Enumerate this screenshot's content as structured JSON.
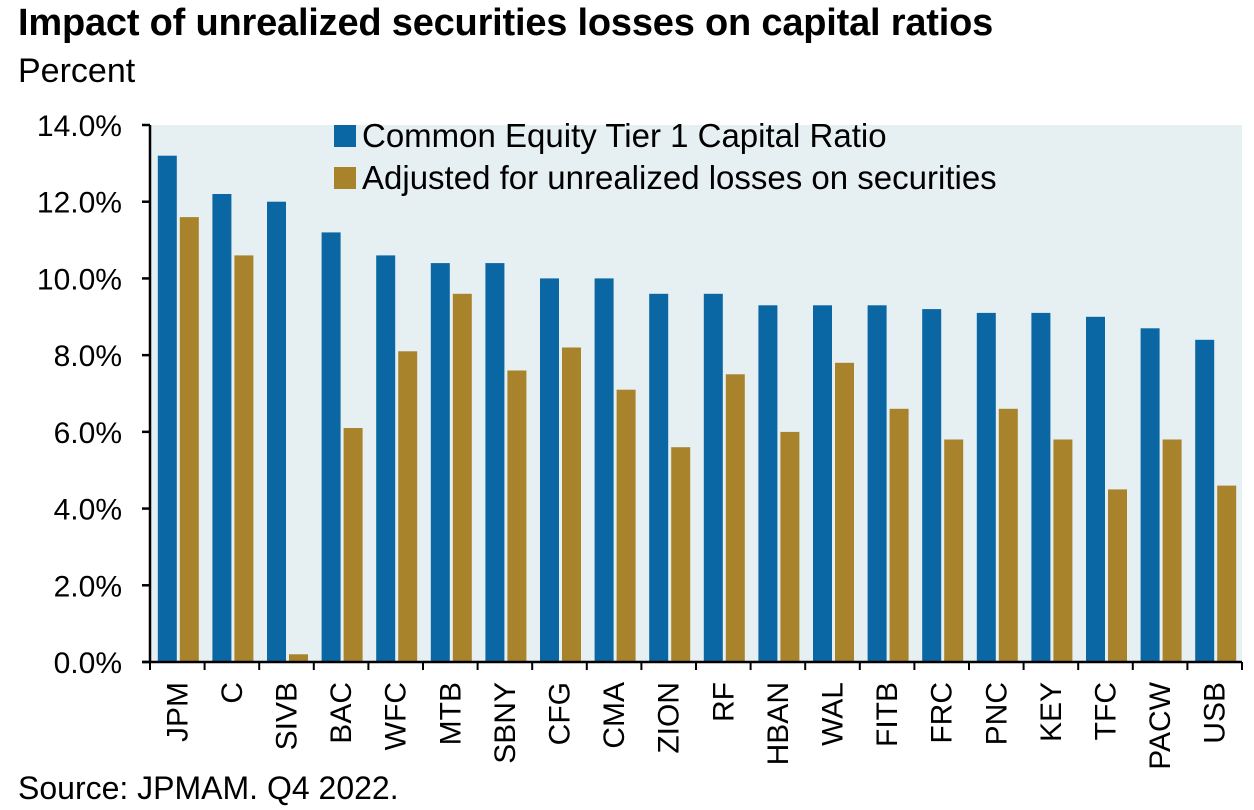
{
  "title": "Impact of unrealized securities losses on capital ratios",
  "subtitle": "Percent",
  "source": "Source: JPMAM. Q4 2022.",
  "colors": {
    "series1": "#0a67a3",
    "series2": "#a8832c",
    "plot_bg": "#e6eff2",
    "axis": "#000000"
  },
  "chart_data": {
    "type": "bar",
    "title": "Impact of unrealized securities losses on capital ratios",
    "ylabel": "Percent",
    "xlabel": "",
    "ylim": [
      0,
      14
    ],
    "yticks": [
      "0.0%",
      "2.0%",
      "4.0%",
      "6.0%",
      "8.0%",
      "10.0%",
      "12.0%",
      "14.0%"
    ],
    "ytick_values": [
      0,
      2,
      4,
      6,
      8,
      10,
      12,
      14
    ],
    "legend_position": "top-center",
    "categories": [
      "JPM",
      "C",
      "SIVB",
      "BAC",
      "WFC",
      "MTB",
      "SBNY",
      "CFG",
      "CMA",
      "ZION",
      "RF",
      "HBAN",
      "WAL",
      "FITB",
      "FRC",
      "PNC",
      "KEY",
      "TFC",
      "PACW",
      "USB"
    ],
    "series": [
      {
        "name": "Common Equity Tier 1 Capital Ratio",
        "color": "#0a67a3",
        "values": [
          13.2,
          12.2,
          12.0,
          11.2,
          10.6,
          10.4,
          10.4,
          10.0,
          10.0,
          9.6,
          9.6,
          9.3,
          9.3,
          9.3,
          9.2,
          9.1,
          9.1,
          9.0,
          8.7,
          8.4
        ]
      },
      {
        "name": "Adjusted for unrealized losses on securities",
        "color": "#a8832c",
        "values": [
          11.6,
          10.6,
          0.2,
          6.1,
          8.1,
          9.6,
          7.6,
          8.2,
          7.1,
          5.6,
          7.5,
          6.0,
          7.8,
          6.6,
          5.8,
          6.6,
          5.8,
          4.5,
          5.8,
          4.6
        ]
      }
    ]
  }
}
